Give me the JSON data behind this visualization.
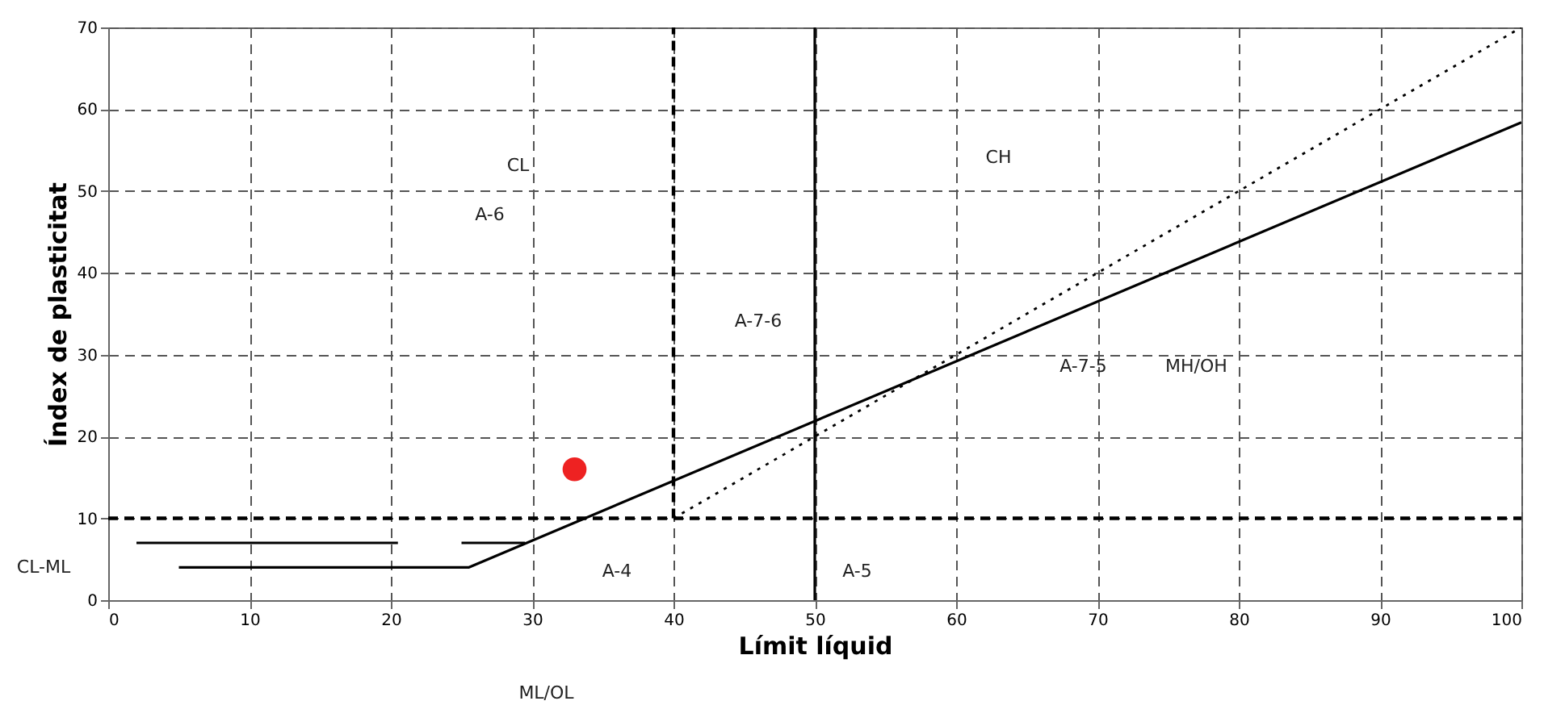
{
  "chart_data": {
    "type": "line",
    "xlabel": "Límit líquid",
    "ylabel": "Índex de plasticitat",
    "xlim": [
      0,
      100
    ],
    "xticks": [
      0,
      10,
      20,
      30,
      40,
      50,
      60,
      70,
      80,
      90,
      100
    ],
    "ylim": [
      0,
      70
    ],
    "yticks": [
      0,
      10,
      20,
      30,
      40,
      50,
      60,
      70
    ],
    "grid": true,
    "series": [
      {
        "color": "#000000",
        "line_style": "solid",
        "x": [
          5,
          25.5,
          100
        ],
        "values": [
          4,
          4,
          58.4
        ]
      },
      {
        "color": "#000000",
        "line_style": "solid",
        "x": [
          2,
          20.5
        ],
        "values": [
          7,
          7
        ]
      },
      {
        "color": "#000000",
        "line_style": "solid",
        "x": [
          25,
          29.5
        ],
        "values": [
          7,
          7
        ]
      },
      {
        "color": "#000000",
        "line_style": "dotted",
        "x": [
          40,
          100
        ],
        "values": [
          10,
          70
        ]
      },
      {
        "color": "#000000",
        "line_style": "dashed",
        "x": [
          0,
          100
        ],
        "values": [
          10,
          10
        ]
      },
      {
        "color": "#000000",
        "line_style": "dashed",
        "x": [
          40,
          40
        ],
        "values": [
          10,
          70
        ]
      },
      {
        "color": "#000000",
        "line_style": "solid",
        "x": [
          50,
          50
        ],
        "values": [
          0,
          70
        ]
      },
      {
        "type": "scatter",
        "color": "#ee2222",
        "marker": "circle",
        "x": [
          33
        ],
        "values": [
          16
        ]
      }
    ],
    "annotations": [
      "CL",
      "A-6",
      "CH",
      "A-7-6",
      "A-7-5",
      "MH/OH",
      "A-4",
      "A-5",
      "CL-ML",
      "ML/OL"
    ]
  }
}
